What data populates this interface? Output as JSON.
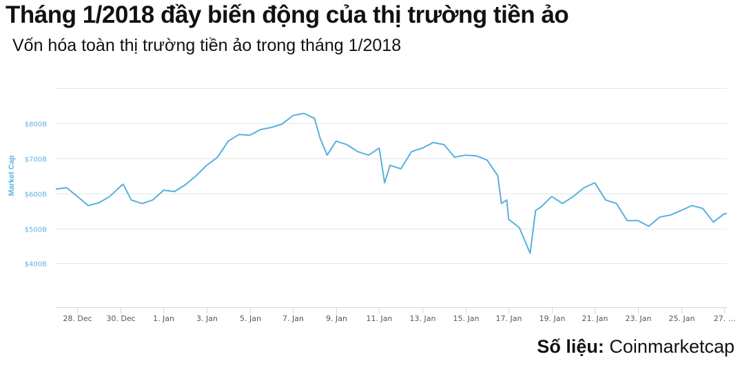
{
  "header": {
    "title": "Tháng 1/2018 đầy biến động của thị trường tiền ảo",
    "subtitle": "Vốn hóa toàn thị trường tiền ảo trong tháng 1/2018"
  },
  "source": {
    "label": "Số liệu:",
    "value": "Coinmarketcap"
  },
  "chart_data": {
    "type": "line",
    "title": "",
    "xlabel": "",
    "ylabel": "Market Cap",
    "line_color": "#55b0e0",
    "label_color": "#5cb3e3",
    "grid": true,
    "legend": "none",
    "ylim": [
      275,
      900
    ],
    "xlim": [
      "2017-12-27T00:00",
      "2018-01-27T03:00"
    ],
    "yticks": [
      400,
      500,
      600,
      700,
      800,
      900
    ],
    "ytick_labels": [
      "$400B",
      "$500B",
      "$600B",
      "$700B",
      "$800B",
      ""
    ],
    "xticks": [
      "2017-12-28",
      "2017-12-30",
      "2018-01-01",
      "2018-01-03",
      "2018-01-05",
      "2018-01-07",
      "2018-01-09",
      "2018-01-11",
      "2018-01-13",
      "2018-01-15",
      "2018-01-17",
      "2018-01-19",
      "2018-01-21",
      "2018-01-23",
      "2018-01-25",
      "2018-01-27"
    ],
    "xtick_labels": [
      "28. Dec",
      "30. Dec",
      "1. Jan",
      "3. Jan",
      "5. Jan",
      "7. Jan",
      "9. Jan",
      "11. Jan",
      "13. Jan",
      "15. Jan",
      "17. Jan",
      "19. Jan",
      "21. Jan",
      "23. Jan",
      "25. Jan",
      "27. ..."
    ],
    "series": [
      {
        "x": [
          "2017-12-27T00:00",
          "2017-12-27T12:00",
          "2017-12-28T00:00",
          "2017-12-28T12:00",
          "2017-12-29T00:00",
          "2017-12-29T12:00",
          "2017-12-30T00:00",
          "2017-12-30T03:00",
          "2017-12-30T12:00",
          "2017-12-31T00:00",
          "2017-12-31T12:00",
          "2018-01-01T00:00",
          "2018-01-01T12:00",
          "2018-01-02T00:00",
          "2018-01-02T12:00",
          "2018-01-03T00:00",
          "2018-01-03T12:00",
          "2018-01-04T00:00",
          "2018-01-04T12:00",
          "2018-01-05T00:00",
          "2018-01-05T12:00",
          "2018-01-06T00:00",
          "2018-01-06T12:00",
          "2018-01-07T00:00",
          "2018-01-07T12:00",
          "2018-01-08T00:00",
          "2018-01-08T06:00",
          "2018-01-08T14:00",
          "2018-01-09T00:00",
          "2018-01-09T12:00",
          "2018-01-10T00:00",
          "2018-01-10T12:00",
          "2018-01-11T00:00",
          "2018-01-11T06:00",
          "2018-01-11T12:00",
          "2018-01-12T00:00",
          "2018-01-12T12:00",
          "2018-01-13T00:00",
          "2018-01-13T12:00",
          "2018-01-14T00:00",
          "2018-01-14T12:00",
          "2018-01-15T00:00",
          "2018-01-15T12:00",
          "2018-01-16T00:00",
          "2018-01-16T12:00",
          "2018-01-16T16:00",
          "2018-01-16T22:00",
          "2018-01-17T00:00",
          "2018-01-17T12:00",
          "2018-01-18T00:00",
          "2018-01-18T06:00",
          "2018-01-18T12:00",
          "2018-01-19T00:00",
          "2018-01-19T12:00",
          "2018-01-20T00:00",
          "2018-01-20T12:00",
          "2018-01-21T00:00",
          "2018-01-21T12:00",
          "2018-01-22T00:00",
          "2018-01-22T12:00",
          "2018-01-23T00:00",
          "2018-01-23T12:00",
          "2018-01-24T00:00",
          "2018-01-24T12:00",
          "2018-01-25T00:00",
          "2018-01-25T12:00",
          "2018-01-26T00:00",
          "2018-01-26T12:00",
          "2018-01-27T00:00",
          "2018-01-27T03:00"
        ],
        "values": [
          612,
          616,
          591,
          565,
          573,
          591,
          620,
          626,
          581,
          571,
          581,
          609,
          605,
          624,
          650,
          680,
          703,
          749,
          768,
          766,
          782,
          788,
          798,
          822,
          828,
          814,
          759,
          709,
          749,
          739,
          719,
          709,
          729,
          630,
          680,
          670,
          719,
          729,
          745,
          739,
          703,
          709,
          707,
          695,
          650,
          571,
          581,
          526,
          502,
          429,
          551,
          561,
          591,
          571,
          591,
          616,
          630,
          581,
          571,
          522,
          522,
          506,
          532,
          538,
          551,
          565,
          557,
          518,
          542,
          542
        ]
      }
    ]
  }
}
